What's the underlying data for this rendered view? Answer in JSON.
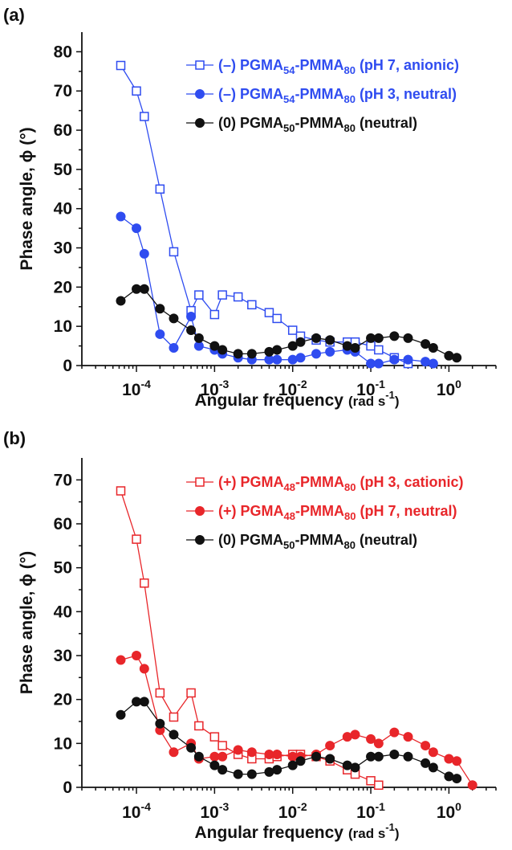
{
  "chart_data": [
    {
      "type": "line",
      "panel_label": "(a)",
      "xlabel_main": "Angular frequency",
      "xlabel_unit": "(rad s",
      "xlabel_exp": "-1",
      "xlabel_close": ")",
      "ylabel": "Phase angle, ϕ (°)",
      "x_scale": "log",
      "xlim": [
        2e-05,
        4
      ],
      "ylim": [
        0,
        85
      ],
      "yticks": [
        0,
        10,
        20,
        30,
        40,
        50,
        60,
        70,
        80
      ],
      "xticks": [
        {
          "base": "10",
          "exp": "-4",
          "value": 0.0001
        },
        {
          "base": "10",
          "exp": "-3",
          "value": 0.001
        },
        {
          "base": "10",
          "exp": "-2",
          "value": 0.01
        },
        {
          "base": "10",
          "exp": "-1",
          "value": 0.1
        },
        {
          "base": "10",
          "exp": "0",
          "value": 1
        }
      ],
      "grid": false,
      "legend_position": "top-right",
      "series": [
        {
          "legend_prefix": "(–) PGMA",
          "legend_sub1": "54",
          "legend_mid": "-PMMA",
          "legend_sub2": "80",
          "legend_suffix": " (pH 7, anionic)",
          "color": "#2f4cf0",
          "marker": "open-square",
          "x": [
            6.3e-05,
            0.0001,
            0.000126,
            0.0002,
            0.0003,
            0.0005,
            0.00063,
            0.001,
            0.00126,
            0.002,
            0.003,
            0.005,
            0.0063,
            0.01,
            0.0126,
            0.02,
            0.03,
            0.05,
            0.063,
            0.1,
            0.126,
            0.2,
            0.3
          ],
          "y": [
            76.5,
            70.0,
            63.5,
            45.0,
            29.0,
            14.0,
            18.0,
            13.0,
            18.0,
            17.5,
            15.5,
            13.5,
            12.0,
            9.0,
            7.5,
            6.5,
            6.0,
            6.0,
            6.0,
            5.0,
            4.0,
            2.0,
            0.5
          ]
        },
        {
          "legend_prefix": "(–) PGMA",
          "legend_sub1": "54",
          "legend_mid": "-PMMA",
          "legend_sub2": "80",
          "legend_suffix": " (pH 3, neutral)",
          "color": "#2f4cf0",
          "marker": "filled-circle",
          "x": [
            6.3e-05,
            0.0001,
            0.000126,
            0.0002,
            0.0003,
            0.0005,
            0.00063,
            0.001,
            0.00126,
            0.002,
            0.003,
            0.005,
            0.0063,
            0.01,
            0.0126,
            0.02,
            0.03,
            0.05,
            0.063,
            0.1,
            0.126,
            0.2,
            0.3,
            0.5,
            0.63
          ],
          "y": [
            38.0,
            35.0,
            28.5,
            8.0,
            4.5,
            12.5,
            5.0,
            4.0,
            3.0,
            2.0,
            1.5,
            1.5,
            1.5,
            1.5,
            2.0,
            3.0,
            3.5,
            4.0,
            3.5,
            0.5,
            0.5,
            1.5,
            1.5,
            1.0,
            0.5
          ]
        },
        {
          "legend_prefix": "(0) PGMA",
          "legend_sub1": "50",
          "legend_mid": "-PMMA",
          "legend_sub2": "80",
          "legend_suffix": " (neutral)",
          "color": "#111111",
          "marker": "filled-circle",
          "x": [
            6.3e-05,
            0.0001,
            0.000126,
            0.0002,
            0.0003,
            0.0005,
            0.00063,
            0.001,
            0.00126,
            0.002,
            0.003,
            0.005,
            0.0063,
            0.01,
            0.0126,
            0.02,
            0.03,
            0.05,
            0.063,
            0.1,
            0.126,
            0.2,
            0.3,
            0.5,
            0.63,
            1.0,
            1.26
          ],
          "y": [
            16.5,
            19.5,
            19.5,
            14.5,
            12.0,
            9.0,
            7.0,
            5.0,
            4.0,
            3.0,
            3.0,
            3.5,
            4.0,
            5.0,
            6.0,
            7.0,
            6.5,
            5.0,
            4.5,
            7.0,
            7.0,
            7.5,
            7.0,
            5.5,
            4.5,
            2.5,
            2.0
          ]
        }
      ]
    },
    {
      "type": "line",
      "panel_label": "(b)",
      "xlabel_main": "Angular frequency",
      "xlabel_unit": "(rad s",
      "xlabel_exp": "-1",
      "xlabel_close": ")",
      "ylabel": "Phase angle, ϕ (°)",
      "x_scale": "log",
      "xlim": [
        2e-05,
        4
      ],
      "ylim": [
        0,
        75
      ],
      "yticks": [
        0,
        10,
        20,
        30,
        40,
        50,
        60,
        70
      ],
      "xticks": [
        {
          "base": "10",
          "exp": "-4",
          "value": 0.0001
        },
        {
          "base": "10",
          "exp": "-3",
          "value": 0.001
        },
        {
          "base": "10",
          "exp": "-2",
          "value": 0.01
        },
        {
          "base": "10",
          "exp": "-1",
          "value": 0.1
        },
        {
          "base": "10",
          "exp": "0",
          "value": 1
        }
      ],
      "grid": false,
      "legend_position": "top-right",
      "series": [
        {
          "legend_prefix": "(+) PGMA",
          "legend_sub1": "48",
          "legend_mid": "-PMMA",
          "legend_sub2": "80",
          "legend_suffix": " (pH 3, cationic)",
          "color": "#e8262a",
          "marker": "open-square",
          "x": [
            6.3e-05,
            0.0001,
            0.000126,
            0.0002,
            0.0003,
            0.0005,
            0.00063,
            0.001,
            0.00126,
            0.002,
            0.003,
            0.005,
            0.0063,
            0.01,
            0.0126,
            0.02,
            0.03,
            0.05,
            0.063,
            0.1,
            0.126
          ],
          "y": [
            67.5,
            56.5,
            46.5,
            21.5,
            16.0,
            21.5,
            14.0,
            11.5,
            9.5,
            7.5,
            6.5,
            6.5,
            7.0,
            7.5,
            7.5,
            7.0,
            6.0,
            4.0,
            3.0,
            1.5,
            0.5
          ]
        },
        {
          "legend_prefix": "(+) PGMA",
          "legend_sub1": "48",
          "legend_mid": "-PMMA",
          "legend_sub2": "80",
          "legend_suffix": " (pH 7, neutral)",
          "color": "#e8262a",
          "marker": "filled-circle",
          "x": [
            6.3e-05,
            0.0001,
            0.000126,
            0.0002,
            0.0003,
            0.0005,
            0.00063,
            0.001,
            0.00126,
            0.002,
            0.003,
            0.005,
            0.0063,
            0.01,
            0.0126,
            0.02,
            0.03,
            0.05,
            0.063,
            0.1,
            0.126,
            0.2,
            0.3,
            0.5,
            0.63,
            1.0,
            1.26,
            2.0
          ],
          "y": [
            29.0,
            30.0,
            27.0,
            13.0,
            8.0,
            10.0,
            6.5,
            7.0,
            7.0,
            8.5,
            8.0,
            7.5,
            7.5,
            7.0,
            7.0,
            7.5,
            9.5,
            11.5,
            12.0,
            11.0,
            10.0,
            12.5,
            11.5,
            9.5,
            8.0,
            6.5,
            6.0,
            0.5
          ]
        },
        {
          "legend_prefix": "(0) PGMA",
          "legend_sub1": "50",
          "legend_mid": "-PMMA",
          "legend_sub2": "80",
          "legend_suffix": " (neutral)",
          "color": "#111111",
          "marker": "filled-circle",
          "x": [
            6.3e-05,
            0.0001,
            0.000126,
            0.0002,
            0.0003,
            0.0005,
            0.00063,
            0.001,
            0.00126,
            0.002,
            0.003,
            0.005,
            0.0063,
            0.01,
            0.0126,
            0.02,
            0.03,
            0.05,
            0.063,
            0.1,
            0.126,
            0.2,
            0.3,
            0.5,
            0.63,
            1.0,
            1.26
          ],
          "y": [
            16.5,
            19.5,
            19.5,
            14.5,
            12.0,
            9.0,
            7.0,
            5.0,
            4.0,
            3.0,
            3.0,
            3.5,
            4.0,
            5.0,
            6.0,
            7.0,
            6.5,
            5.0,
            4.5,
            7.0,
            7.0,
            7.5,
            7.0,
            5.5,
            4.5,
            2.5,
            2.0
          ]
        }
      ]
    }
  ]
}
